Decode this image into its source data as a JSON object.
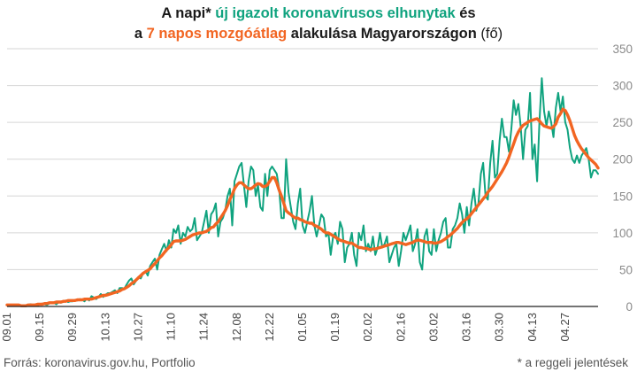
{
  "title": {
    "line1": [
      {
        "text": "A napi* ",
        "color": "#1a1a1a"
      },
      {
        "text": "új igazolt koronavírusos elhunytak",
        "color": "#10a37f"
      },
      {
        "text": " és",
        "color": "#1a1a1a"
      }
    ],
    "line2": [
      {
        "text": "a ",
        "color": "#1a1a1a"
      },
      {
        "text": "7 napos mozgóátlag",
        "color": "#f26522"
      },
      {
        "text": " alakulása Magyarországon ",
        "color": "#1a1a1a"
      },
      {
        "text": "(fő)",
        "color": "#1a1a1a",
        "weight": "normal"
      }
    ]
  },
  "footer": {
    "source": "Forrás: koronavirus.gov.hu, Portfolio",
    "footnote": "* a reggeli jelentések"
  },
  "chart_data": {
    "type": "line",
    "xlabel": "",
    "ylabel": "",
    "ylim": [
      0,
      350
    ],
    "yticks": [
      0,
      50,
      100,
      150,
      200,
      250,
      300,
      350
    ],
    "y_axis_side": "right",
    "grid": true,
    "x_tick_labels": [
      "09.01",
      "09.15",
      "09.29",
      "10.13",
      "10.27",
      "11.10",
      "11.24",
      "12.08",
      "12.22",
      "01.05",
      "01.19",
      "02.02",
      "02.16",
      "03.02",
      "03.16",
      "03.30",
      "04.13",
      "04.27"
    ],
    "x_start_date": "09.01",
    "x_step": "1 day",
    "series": [
      {
        "name": "új igazolt koronavírusos elhunytak",
        "color": "#10a37f",
        "values": [
          2,
          1,
          2,
          1,
          1,
          2,
          1,
          1,
          1,
          2,
          3,
          2,
          2,
          1,
          3,
          4,
          3,
          2,
          4,
          5,
          5,
          3,
          6,
          5,
          7,
          8,
          6,
          7,
          7,
          9,
          8,
          10,
          9,
          7,
          11,
          8,
          14,
          12,
          10,
          13,
          17,
          13,
          16,
          18,
          18,
          20,
          22,
          18,
          25,
          25,
          24,
          30,
          35,
          38,
          30,
          35,
          40,
          38,
          45,
          48,
          42,
          55,
          60,
          65,
          50,
          70,
          78,
          85,
          75,
          90,
          80,
          105,
          100,
          110,
          85,
          100,
          95,
          108,
          102,
          105,
          120,
          90,
          95,
          100,
          115,
          130,
          100,
          125,
          130,
          140,
          95,
          115,
          120,
          130,
          150,
          160,
          110,
          170,
          180,
          190,
          195,
          165,
          135,
          170,
          190,
          185,
          150,
          165,
          135,
          130,
          180,
          150,
          185,
          190,
          185,
          180,
          160,
          120,
          120,
          200,
          155,
          135,
          115,
          105,
          140,
          160,
          110,
          100,
          115,
          130,
          150,
          110,
          95,
          110,
          125,
          120,
          95,
          100,
          70,
          95,
          100,
          85,
          115,
          105,
          60,
          80,
          85,
          100,
          70,
          55,
          100,
          90,
          110,
          75,
          85,
          75,
          95,
          70,
          80,
          100,
          80,
          85,
          95,
          60,
          70,
          80,
          85,
          55,
          75,
          100,
          90,
          100,
          110,
          75,
          85,
          105,
          60,
          50,
          95,
          105,
          75,
          70,
          105,
          75,
          90,
          100,
          115,
          120,
          80,
          80,
          105,
          110,
          120,
          140,
          125,
          100,
          135,
          110,
          140,
          160,
          130,
          140,
          180,
          195,
          150,
          145,
          195,
          225,
          175,
          180,
          225,
          255,
          230,
          230,
          210,
          240,
          280,
          260,
          275,
          245,
          200,
          240,
          245,
          290,
          200,
          220,
          170,
          250,
          310,
          265,
          245,
          265,
          250,
          230,
          270,
          290,
          265,
          285,
          250,
          240,
          215,
          200,
          195,
          205,
          195,
          205,
          210,
          215,
          200,
          175,
          185,
          185,
          180
        ]
      },
      {
        "name": "7 napos mozgóátlag",
        "color": "#f26522",
        "values": [
          2,
          2,
          2,
          2,
          2,
          2,
          1,
          1,
          1,
          2,
          2,
          2,
          2,
          3,
          3,
          3,
          4,
          4,
          5,
          5,
          5,
          6,
          6,
          6,
          7,
          7,
          8,
          8,
          8,
          8,
          9,
          9,
          9,
          10,
          10,
          10,
          10,
          11,
          12,
          13,
          14,
          15,
          15,
          16,
          17,
          18,
          19,
          20,
          21,
          23,
          24,
          26,
          28,
          31,
          33,
          36,
          39,
          42,
          45,
          47,
          49,
          51,
          55,
          58,
          62,
          66,
          69,
          73,
          77,
          80,
          84,
          88,
          89,
          89,
          89,
          90,
          91,
          93,
          95,
          97,
          98,
          99,
          100,
          100,
          101,
          102,
          104,
          107,
          108,
          112,
          115,
          120,
          125,
          130,
          137,
          145,
          152,
          160,
          165,
          168,
          168,
          165,
          162,
          160,
          160,
          162,
          165,
          167,
          166,
          163,
          163,
          165,
          170,
          175,
          175,
          168,
          158,
          150,
          140,
          130,
          127,
          125,
          122,
          120,
          120,
          118,
          117,
          115,
          114,
          113,
          113,
          110,
          109,
          107,
          105,
          102,
          100,
          100,
          98,
          96,
          94,
          92,
          90,
          89,
          88,
          87,
          86,
          86,
          84,
          82,
          80,
          80,
          79,
          79,
          78,
          77,
          78,
          78,
          79,
          80,
          81,
          82,
          83,
          84,
          85,
          86,
          87,
          87,
          86,
          85,
          84,
          85,
          86,
          87,
          89,
          90,
          90,
          89,
          88,
          87,
          87,
          87,
          86,
          86,
          87,
          88,
          90,
          92,
          95,
          97,
          100,
          103,
          106,
          110,
          114,
          117,
          119,
          122,
          126,
          130,
          134,
          138,
          142,
          146,
          150,
          155,
          159,
          163,
          168,
          173,
          178,
          183,
          189,
          195,
          203,
          212,
          221,
          230,
          237,
          242,
          246,
          248,
          250,
          252,
          253,
          254,
          255,
          252,
          248,
          245,
          244,
          243,
          242,
          244,
          248,
          257,
          262,
          268,
          266,
          260,
          252,
          242,
          232,
          225,
          219,
          214,
          210,
          206,
          202,
          199,
          196,
          193,
          188
        ]
      }
    ]
  }
}
